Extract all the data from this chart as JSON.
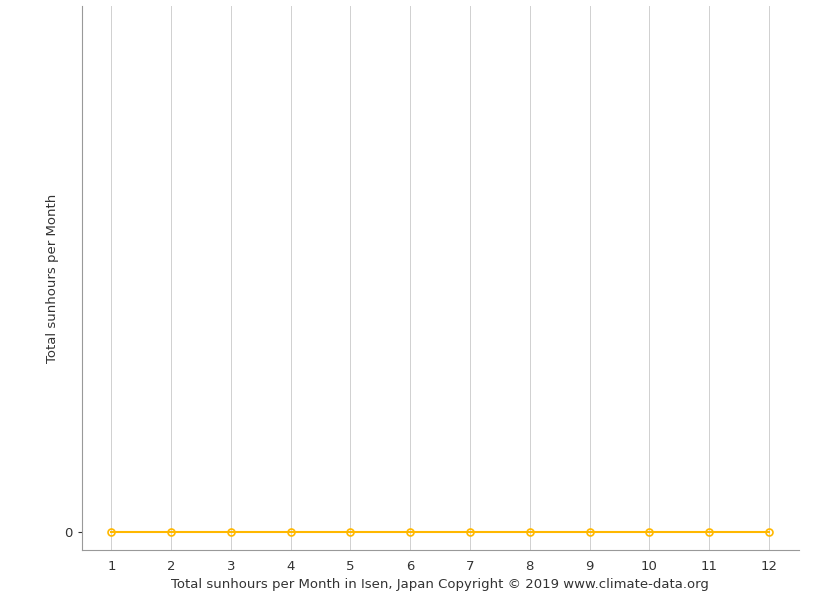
{
  "x": [
    1,
    2,
    3,
    4,
    5,
    6,
    7,
    8,
    9,
    10,
    11,
    12
  ],
  "y": [
    0,
    0,
    0,
    0,
    0,
    0,
    0,
    0,
    0,
    0,
    0,
    0
  ],
  "line_color": "#FFB800",
  "marker_color": "#FFB800",
  "marker_style": "o",
  "marker_size": 5,
  "marker_facecolor": "none",
  "line_width": 1.5,
  "xlabel": "Total sunhours per Month in Isen, Japan Copyright © 2019 www.climate-data.org",
  "ylabel": "Total sunhours per Month",
  "xlim": [
    0.5,
    12.5
  ],
  "ylim_min": -20,
  "ylim_max": 600,
  "xticks": [
    1,
    2,
    3,
    4,
    5,
    6,
    7,
    8,
    9,
    10,
    11,
    12
  ],
  "yticks": [
    0
  ],
  "grid_color": "#d0d0d0",
  "background_color": "#ffffff",
  "xlabel_fontsize": 9.5,
  "ylabel_fontsize": 9.5,
  "tick_fontsize": 9.5,
  "spine_color": "#999999"
}
